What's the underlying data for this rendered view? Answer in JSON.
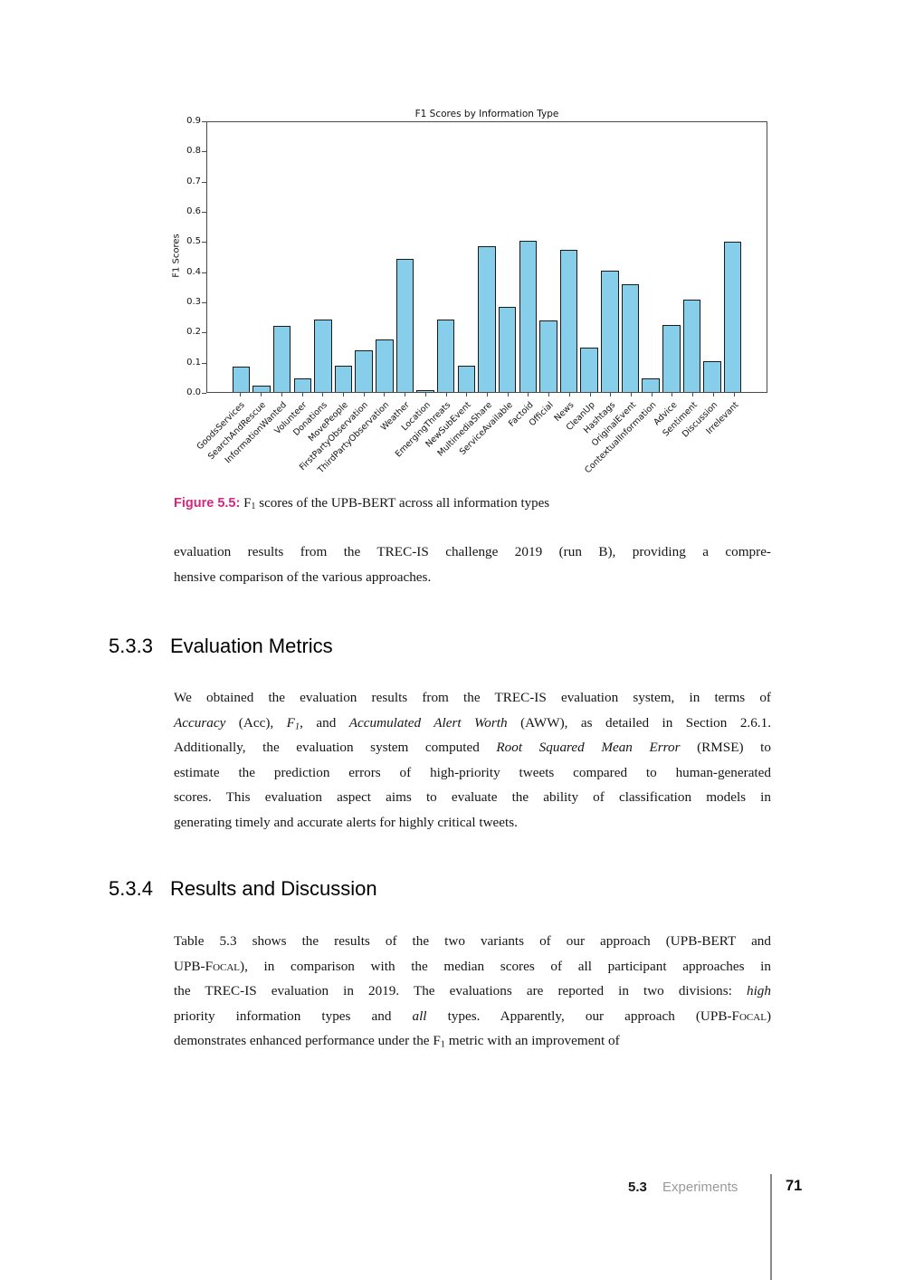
{
  "accent_color": "#d6277e",
  "chart_data": {
    "type": "bar",
    "title": "F1 Scores by Information Type",
    "ylabel": "F1 Scores",
    "ylim": [
      0.0,
      0.9
    ],
    "ytick_step": 0.1,
    "grid": false,
    "legend": "none",
    "bar_color": "#87CEEB",
    "bar_edge_color": "#1a1a1a",
    "categories": [
      "GoodsServices",
      "SearchAndRescue",
      "InformationWanted",
      "Volunteer",
      "Donations",
      "MovePeople",
      "FirstPartyObservation",
      "ThirdPartyObservation",
      "Weather",
      "Location",
      "EmergingThreats",
      "NewSubEvent",
      "MultimediaShare",
      "ServiceAvailable",
      "Factoid",
      "Official",
      "News",
      "CleanUp",
      "Hashtags",
      "OriginalEvent",
      "ContextualInformation",
      "Advice",
      "Sentiment",
      "Discussion",
      "Irrelevant"
    ],
    "values": [
      0.085,
      0.02,
      0.22,
      0.046,
      0.242,
      0.088,
      0.14,
      0.174,
      0.443,
      0.005,
      0.242,
      0.087,
      0.487,
      0.285,
      0.505,
      0.238,
      0.475,
      0.148,
      0.406,
      0.36,
      0.046,
      0.223,
      0.307,
      0.103,
      0.502
    ]
  },
  "figure": {
    "caption_label": "Figure 5.5:",
    "caption_pre": " F",
    "caption_sub": "1",
    "caption_rest": " scores of the UPB-BERT across all information types"
  },
  "intro_paragraph": {
    "line1": "evaluation results from the TREC-IS challenge 2019 (run B), providing a compre-",
    "line2": "hensive comparison of the various approaches."
  },
  "sections": [
    {
      "number": "5.3.3",
      "title": "Evaluation Metrics"
    },
    {
      "number": "5.3.4",
      "title": "Results and Discussion"
    }
  ],
  "s533": {
    "l1": "We obtained the evaluation results from the TREC-IS evaluation system, in terms of",
    "l2a": "Accuracy",
    "l2b": " (Acc), ",
    "l2c": "F",
    "l2c_sub": "1",
    "l2d": ", and ",
    "l2e": "Accumulated Alert Worth",
    "l2f": " (AWW), as detailed in Section 2.6.1.",
    "l3a": "Additionally, the evaluation system computed ",
    "l3b": "Root Squared Mean Error",
    "l3c": " (RMSE) to",
    "l4": "estimate the prediction errors of high-priority tweets compared to human-generated",
    "l5": "scores. This evaluation aspect aims to evaluate the ability of classification models in",
    "l6": "generating timely and accurate alerts for highly critical tweets."
  },
  "s534": {
    "l1": "Table 5.3 shows the results of the two variants of our approach (UPB-BERT and",
    "l2a": "UPB-F",
    "l2b": "ocal",
    "l2c": "), in comparison with the median scores of all participant approaches in",
    "l3a": "the TREC-IS evaluation in 2019. The evaluations are reported in two divisions: ",
    "l3b": "high",
    "l4a": "priority information types and ",
    "l4b": "all",
    "l4c": " types. Apparently, our approach (UPB-F",
    "l4d": "ocal",
    "l4e": ")",
    "l5a": "demonstrates enhanced performance under the F",
    "l5a_sub": "1",
    "l5b": " metric with an improvement of"
  },
  "footer": {
    "section_number": "5.3",
    "section_title": "Experiments",
    "page_number": "71"
  }
}
